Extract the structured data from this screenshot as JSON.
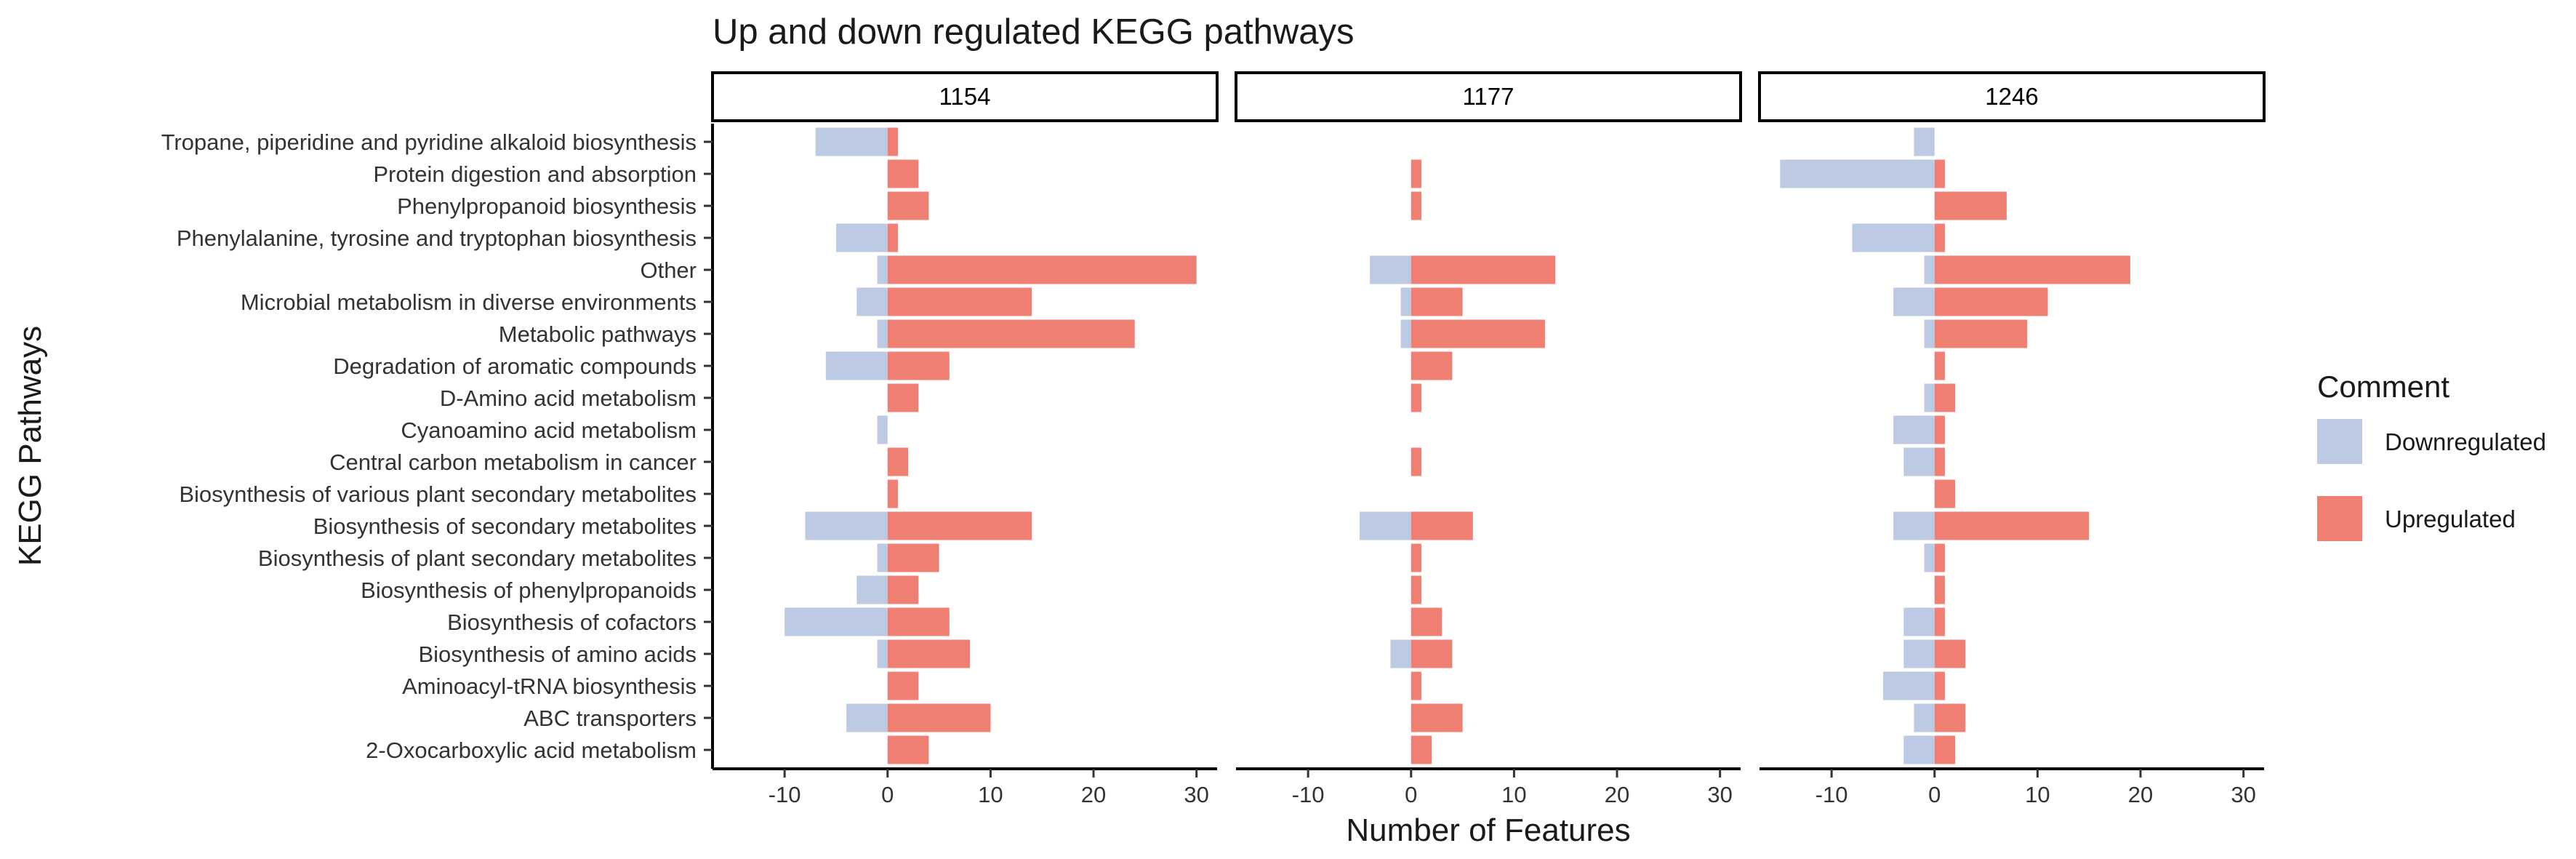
{
  "chart_data": {
    "type": "bar",
    "title": "Up and down regulated KEGG pathways",
    "xlabel": "Number of Features",
    "ylabel": "KEGG Pathways",
    "xlim": [
      -17,
      32
    ],
    "xticks": [
      -10,
      0,
      10,
      20,
      30
    ],
    "xtick_labels": [
      "-10",
      "0",
      "10",
      "20",
      "30"
    ],
    "grid": false,
    "legend": {
      "title": "Comment",
      "position": "right",
      "entries": [
        {
          "name": "Downregulated",
          "color": "#bccbe3"
        },
        {
          "name": "Upregulated",
          "color": "#ef7f72"
        }
      ]
    },
    "categories": [
      "Tropane, piperidine and pyridine alkaloid biosynthesis",
      "Protein digestion and absorption",
      "Phenylpropanoid biosynthesis",
      "Phenylalanine, tyrosine and tryptophan biosynthesis",
      "Other",
      "Microbial metabolism in diverse environments",
      "Metabolic pathways",
      "Degradation of aromatic compounds",
      "D-Amino acid metabolism",
      "Cyanoamino acid metabolism",
      "Central carbon metabolism in cancer",
      "Biosynthesis of various plant secondary metabolites",
      "Biosynthesis of secondary metabolites",
      "Biosynthesis of plant secondary metabolites",
      "Biosynthesis of phenylpropanoids",
      "Biosynthesis of cofactors",
      "Biosynthesis of amino acids",
      "Aminoacyl-tRNA biosynthesis",
      "ABC transporters",
      "2-Oxocarboxylic acid metabolism"
    ],
    "panels": [
      {
        "label": "1154",
        "series": [
          {
            "name": "Downregulated",
            "values": [
              -7,
              0,
              0,
              -5,
              -1,
              -3,
              -1,
              -6,
              0,
              -1,
              0,
              0,
              -8,
              -1,
              -3,
              -10,
              -1,
              0,
              -4,
              0
            ]
          },
          {
            "name": "Upregulated",
            "values": [
              1,
              3,
              4,
              1,
              30,
              14,
              24,
              6,
              3,
              0,
              2,
              1,
              14,
              5,
              3,
              6,
              8,
              3,
              10,
              4
            ]
          }
        ]
      },
      {
        "label": "1177",
        "series": [
          {
            "name": "Downregulated",
            "values": [
              0,
              0,
              0,
              0,
              -4,
              -1,
              -1,
              0,
              0,
              0,
              0,
              0,
              -5,
              0,
              0,
              0,
              -2,
              0,
              0,
              0
            ]
          },
          {
            "name": "Upregulated",
            "values": [
              0,
              1,
              1,
              0,
              14,
              5,
              13,
              4,
              1,
              0,
              1,
              0,
              6,
              1,
              1,
              3,
              4,
              1,
              5,
              2
            ]
          }
        ]
      },
      {
        "label": "1246",
        "series": [
          {
            "name": "Downregulated",
            "values": [
              -2,
              -15,
              0,
              -8,
              -1,
              -4,
              -1,
              0,
              -1,
              -4,
              -3,
              0,
              -4,
              -1,
              0,
              -3,
              -3,
              -5,
              -2,
              -3
            ]
          },
          {
            "name": "Upregulated",
            "values": [
              0,
              1,
              7,
              1,
              19,
              11,
              9,
              1,
              2,
              1,
              1,
              2,
              15,
              1,
              1,
              1,
              3,
              1,
              3,
              2
            ]
          }
        ]
      }
    ]
  }
}
